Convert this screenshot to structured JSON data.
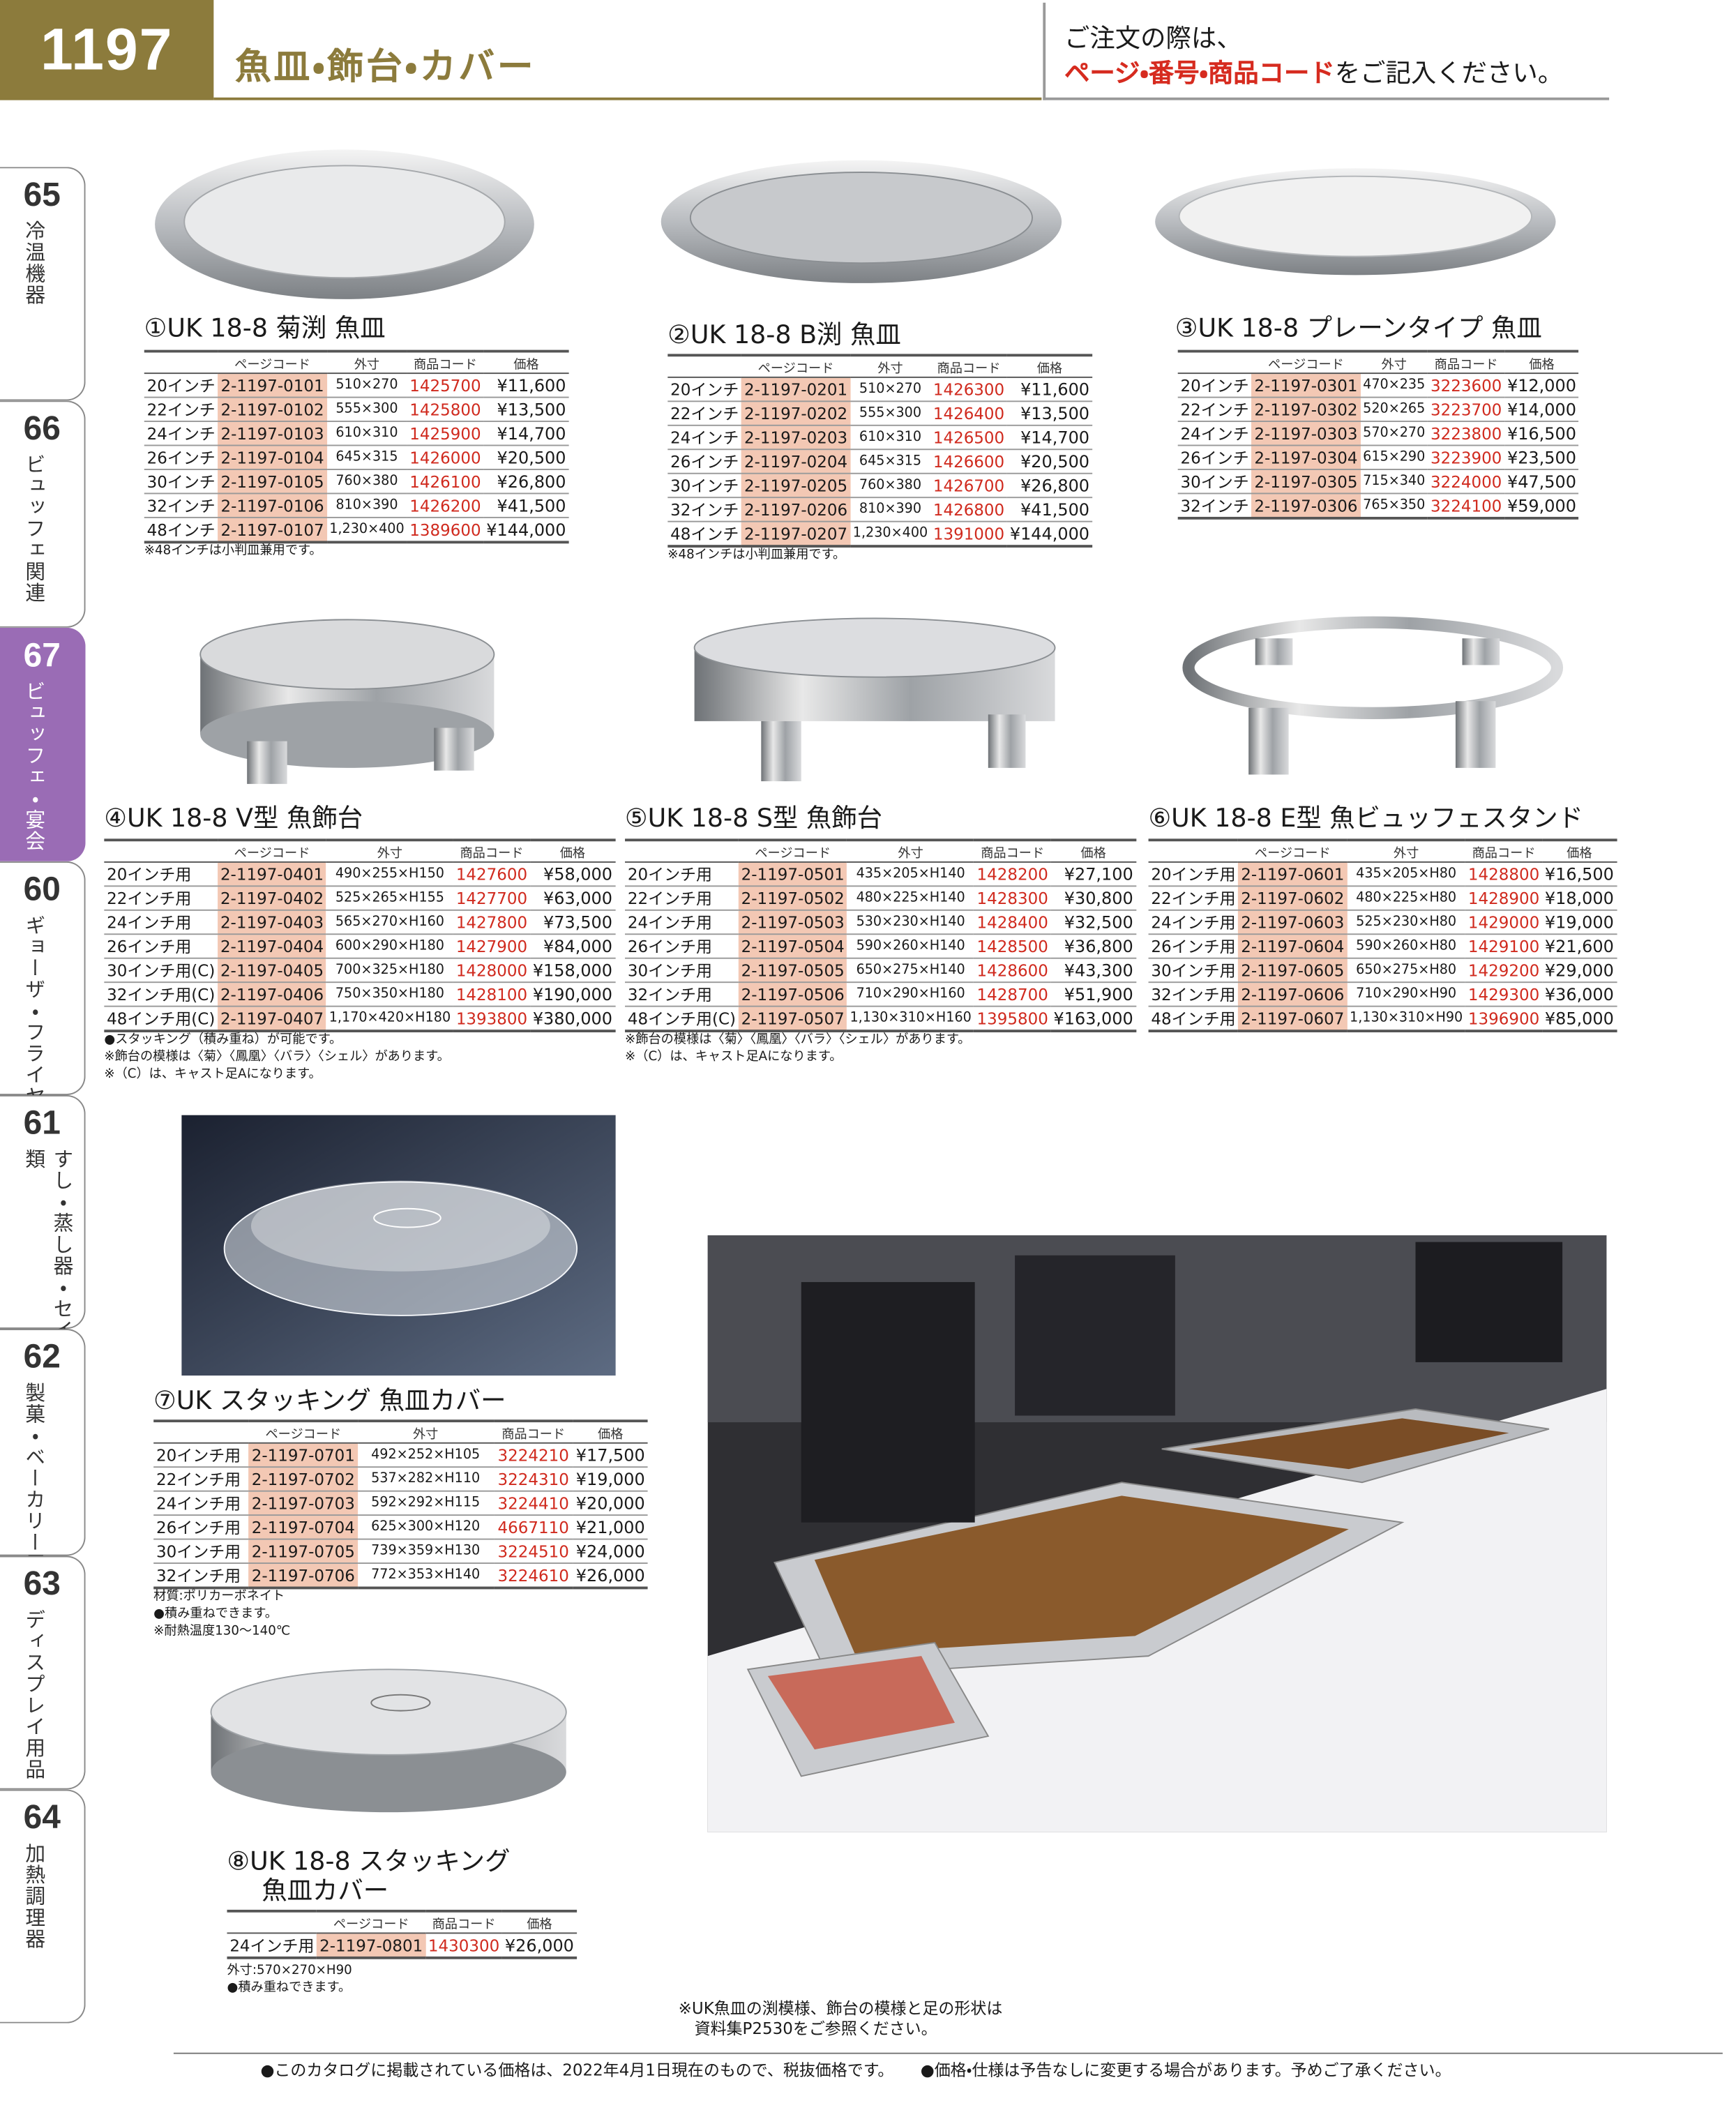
{
  "header": {
    "page_number": "1197",
    "title": "魚皿・飾台・カバー",
    "notice": {
      "line1": "ご注文の際は、",
      "highlight": "ページ・番号・商品コード",
      "rest": "をご記入ください。"
    }
  },
  "side_tabs": [
    {
      "number": "65",
      "label": "冷温機器"
    },
    {
      "number": "66",
      "label": "ビュッフェ関連"
    },
    {
      "number": "67",
      "label": "ビュッフェ・宴会"
    },
    {
      "number": "60",
      "label": "ギョーザ・フライヤー"
    },
    {
      "number": "61",
      "label": "すし・蒸し器・セイロ類"
    },
    {
      "number": "62",
      "label": "製菓・ベーカリー用品"
    },
    {
      "number": "63",
      "label": "ディスプレイ用品"
    },
    {
      "number": "64",
      "label": "加熱調理器"
    }
  ],
  "products": [
    {
      "title": "①UK 18-8 菊渕 魚皿",
      "columns": [
        "ページコード",
        "外寸",
        "商品コード",
        "価格"
      ],
      "rows": [
        [
          "20インチ",
          "2-1197-0101",
          "510×270",
          "1425700",
          "¥11,600"
        ],
        [
          "22インチ",
          "2-1197-0102",
          "555×300",
          "1425800",
          "¥13,500"
        ],
        [
          "24インチ",
          "2-1197-0103",
          "610×310",
          "1425900",
          "¥14,700"
        ],
        [
          "26インチ",
          "2-1197-0104",
          "645×315",
          "1426000",
          "¥20,500"
        ],
        [
          "30インチ",
          "2-1197-0105",
          "760×380",
          "1426100",
          "¥26,800"
        ],
        [
          "32インチ",
          "2-1197-0106",
          "810×390",
          "1426200",
          "¥41,500"
        ],
        [
          "48インチ",
          "2-1197-0107",
          "1,230×400",
          "1389600",
          "¥144,000"
        ]
      ],
      "notes": [
        "※48インチは小判皿兼用です。"
      ]
    },
    {
      "title": "②UK 18-8 B渕 魚皿",
      "columns": [
        "ページコード",
        "外寸",
        "商品コード",
        "価格"
      ],
      "rows": [
        [
          "20インチ",
          "2-1197-0201",
          "510×270",
          "1426300",
          "¥11,600"
        ],
        [
          "22インチ",
          "2-1197-0202",
          "555×300",
          "1426400",
          "¥13,500"
        ],
        [
          "24インチ",
          "2-1197-0203",
          "610×310",
          "1426500",
          "¥14,700"
        ],
        [
          "26インチ",
          "2-1197-0204",
          "645×315",
          "1426600",
          "¥20,500"
        ],
        [
          "30インチ",
          "2-1197-0205",
          "760×380",
          "1426700",
          "¥26,800"
        ],
        [
          "32インチ",
          "2-1197-0206",
          "810×390",
          "1426800",
          "¥41,500"
        ],
        [
          "48インチ",
          "2-1197-0207",
          "1,230×400",
          "1391000",
          "¥144,000"
        ]
      ],
      "notes": [
        "※48インチは小判皿兼用です。"
      ]
    },
    {
      "title": "③UK 18-8 プレーンタイプ 魚皿",
      "columns": [
        "ページコード",
        "外寸",
        "商品コード",
        "価格"
      ],
      "rows": [
        [
          "20インチ",
          "2-1197-0301",
          "470×235",
          "3223600",
          "¥12,000"
        ],
        [
          "22インチ",
          "2-1197-0302",
          "520×265",
          "3223700",
          "¥14,000"
        ],
        [
          "24インチ",
          "2-1197-0303",
          "570×270",
          "3223800",
          "¥16,500"
        ],
        [
          "26インチ",
          "2-1197-0304",
          "615×290",
          "3223900",
          "¥23,500"
        ],
        [
          "30インチ",
          "2-1197-0305",
          "715×340",
          "3224000",
          "¥47,500"
        ],
        [
          "32インチ",
          "2-1197-0306",
          "765×350",
          "3224100",
          "¥59,000"
        ]
      ],
      "notes": []
    },
    {
      "title": "④UK 18-8 V型 魚飾台",
      "columns": [
        "ページコード",
        "外寸",
        "商品コード",
        "価格"
      ],
      "rows": [
        [
          "20インチ用",
          "2-1197-0401",
          "490×255×H150",
          "1427600",
          "¥58,000"
        ],
        [
          "22インチ用",
          "2-1197-0402",
          "525×265×H155",
          "1427700",
          "¥63,000"
        ],
        [
          "24インチ用",
          "2-1197-0403",
          "565×270×H160",
          "1427800",
          "¥73,500"
        ],
        [
          "26インチ用",
          "2-1197-0404",
          "600×290×H180",
          "1427900",
          "¥84,000"
        ],
        [
          "30インチ用(C)",
          "2-1197-0405",
          "700×325×H180",
          "1428000",
          "¥158,000"
        ],
        [
          "32インチ用(C)",
          "2-1197-0406",
          "750×350×H180",
          "1428100",
          "¥190,000"
        ],
        [
          "48インチ用(C)",
          "2-1197-0407",
          "1,170×420×H180",
          "1393800",
          "¥380,000"
        ]
      ],
      "notes": [
        "●スタッキング（積み重ね）が可能です。",
        "※飾台の模様は〈菊〉〈鳳凰〉〈バラ〉〈シェル〉があります。",
        "※（C）は、キャスト足Aになります。"
      ]
    },
    {
      "title": "⑤UK 18-8 S型 魚飾台",
      "columns": [
        "ページコード",
        "外寸",
        "商品コード",
        "価格"
      ],
      "rows": [
        [
          "20インチ用",
          "2-1197-0501",
          "435×205×H140",
          "1428200",
          "¥27,100"
        ],
        [
          "22インチ用",
          "2-1197-0502",
          "480×225×H140",
          "1428300",
          "¥30,800"
        ],
        [
          "24インチ用",
          "2-1197-0503",
          "530×230×H140",
          "1428400",
          "¥32,500"
        ],
        [
          "26インチ用",
          "2-1197-0504",
          "590×260×H140",
          "1428500",
          "¥36,800"
        ],
        [
          "30インチ用",
          "2-1197-0505",
          "650×275×H140",
          "1428600",
          "¥43,300"
        ],
        [
          "32インチ用",
          "2-1197-0506",
          "710×290×H160",
          "1428700",
          "¥51,900"
        ],
        [
          "48インチ用(C)",
          "2-1197-0507",
          "1,130×310×H160",
          "1395800",
          "¥163,000"
        ]
      ],
      "notes": [
        "※飾台の模様は〈菊〉〈鳳凰〉〈バラ〉〈シェル〉があります。",
        "※（C）は、キャスト足Aになります。"
      ]
    },
    {
      "title": "⑥UK 18-8 E型 魚ビュッフェスタンド",
      "columns": [
        "ページコード",
        "外寸",
        "商品コード",
        "価格"
      ],
      "rows": [
        [
          "20インチ用",
          "2-1197-0601",
          "435×205×H80",
          "1428800",
          "¥16,500"
        ],
        [
          "22インチ用",
          "2-1197-0602",
          "480×225×H80",
          "1428900",
          "¥18,000"
        ],
        [
          "24インチ用",
          "2-1197-0603",
          "525×230×H80",
          "1429000",
          "¥19,000"
        ],
        [
          "26インチ用",
          "2-1197-0604",
          "590×260×H80",
          "1429100",
          "¥21,600"
        ],
        [
          "30インチ用",
          "2-1197-0605",
          "650×275×H80",
          "1429200",
          "¥29,000"
        ],
        [
          "32インチ用",
          "2-1197-0606",
          "710×290×H90",
          "1429300",
          "¥36,000"
        ],
        [
          "48インチ用",
          "2-1197-0607",
          "1,130×310×H90",
          "1396900",
          "¥85,000"
        ]
      ],
      "notes": []
    },
    {
      "title": "⑦UK スタッキング 魚皿カバー",
      "columns": [
        "ページコード",
        "外寸",
        "商品コード",
        "価格"
      ],
      "rows": [
        [
          "20インチ用",
          "2-1197-0701",
          "492×252×H105",
          "3224210",
          "¥17,500"
        ],
        [
          "22インチ用",
          "2-1197-0702",
          "537×282×H110",
          "3224310",
          "¥19,000"
        ],
        [
          "24インチ用",
          "2-1197-0703",
          "592×292×H115",
          "3224410",
          "¥20,000"
        ],
        [
          "26インチ用",
          "2-1197-0704",
          "625×300×H120",
          "4667110",
          "¥21,000"
        ],
        [
          "30インチ用",
          "2-1197-0705",
          "739×359×H130",
          "3224510",
          "¥24,000"
        ],
        [
          "32インチ用",
          "2-1197-0706",
          "772×353×H140",
          "3224610",
          "¥26,000"
        ]
      ],
      "notes": [
        "材質:ポリカーボネイト",
        "●積み重ねできます。",
        "※耐熱温度130〜140℃"
      ]
    },
    {
      "title": [
        "⑧UK 18-8 スタッキング",
        "魚皿カバー"
      ],
      "columns": [
        "ページコード",
        "商品コード",
        "価格"
      ],
      "rows": [
        [
          "24インチ用",
          "2-1197-0801",
          "1430300",
          "¥26,000"
        ]
      ],
      "notes": [
        "外寸:570×270×H90",
        "●積み重ねできます。"
      ]
    }
  ],
  "bottom_note": [
    "※UK魚皿の渕模様、飾台の模様と足の形状は",
    "資料集P2530をご参照ください。"
  ],
  "footer": [
    "●このカタログに掲載されている価格は、2022年4月1日現在のもので、税抜価格です。",
    "●価格・仕様は予告なしに変更する場合があります。予めご了承ください。"
  ]
}
